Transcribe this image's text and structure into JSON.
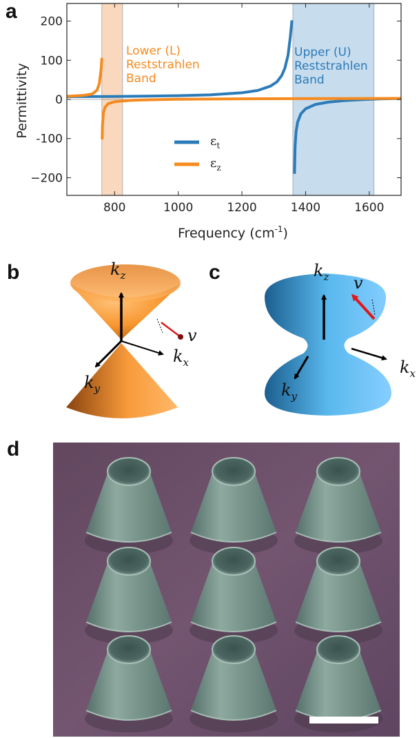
{
  "panels": {
    "a": "a",
    "b": "b",
    "c": "c",
    "d": "d"
  },
  "chart_data": {
    "type": "line",
    "xlabel": "Frequency (cm",
    "xlabel_sup": "-1",
    "xlabel_close": ")",
    "ylabel": "Permittivity",
    "xlim": [
      650,
      1700
    ],
    "ylim": [
      -245,
      245
    ],
    "x_ticks": [
      800,
      1000,
      1200,
      1400,
      1600
    ],
    "x_tick_labels": [
      "800",
      "1000",
      "1200",
      "1400",
      "1600"
    ],
    "y_ticks": [
      200,
      100,
      0,
      -100,
      -200
    ],
    "y_tick_labels": [
      "200",
      "100",
      "0",
      "-100",
      "−200"
    ],
    "bands": [
      {
        "name": "Lower (L) Reststrahlen Band",
        "lines": [
          "Lower (L)",
          "Reststrahlen",
          "Band"
        ],
        "x_range": [
          760,
          825
        ],
        "color": "#f9d8bd"
      },
      {
        "name": "Upper (U) Reststrahlen Band",
        "lines": [
          "Upper (U)",
          "Reststrahlen",
          "Band"
        ],
        "x_range": [
          1360,
          1615
        ],
        "color": "#c7dced"
      }
    ],
    "series": [
      {
        "name": "εt",
        "symbol": "ε",
        "sub": "t",
        "color": "#2b7bb9",
        "segments": [
          {
            "x": [
              650,
              800,
              900,
              1000,
              1100,
              1200,
              1250,
              1290,
              1310,
              1325,
              1335,
              1345,
              1352,
              1357
            ],
            "y": [
              7,
              7.6,
              8.4,
              9.6,
              11.6,
              17,
              23,
              34,
              45,
              61,
              80,
              113,
              160,
              202
            ]
          },
          {
            "x": [
              1365,
              1367,
              1370,
              1375,
              1385,
              1400,
              1430,
              1470,
              1520,
              1580,
              1640,
              1700
            ],
            "y": [
              -190,
              -120,
              -82,
              -58,
              -37,
              -24,
              -13,
              -7,
              -3,
              -0.5,
              1.5,
              2.5
            ]
          }
        ]
      },
      {
        "name": "εz",
        "symbol": "ε",
        "sub": "z",
        "color": "#f68a1e",
        "segments": [
          {
            "x": [
              650,
              700,
              730,
              745,
              752,
              758,
              760
            ],
            "y": [
              8,
              10,
              14,
              24,
              40,
              80,
              106
            ]
          },
          {
            "x": [
              761,
              762,
              765,
              770,
              780,
              800,
              850,
              900,
              1000,
              1200,
              1500,
              1700
            ],
            "y": [
              -102,
              -66,
              -34,
              -20,
              -11,
              -6,
              -2.5,
              -1,
              0.5,
              1.5,
              2.2,
              2.6
            ]
          }
        ]
      }
    ],
    "legend_position": "lower-center"
  },
  "iso_b": {
    "kz": "k",
    "kz_sub": "z",
    "kx": "k",
    "kx_sub": "x",
    "ky": "k",
    "ky_sub": "y",
    "v": "v",
    "color": "#f7962e"
  },
  "iso_c": {
    "kz": "k",
    "kz_sub": "z",
    "kx": "k",
    "kx_sub": "x",
    "ky": "k",
    "ky_sub": "y",
    "v": "v",
    "color": "#55b4ec"
  },
  "sem": {
    "grid": [
      3,
      3
    ],
    "background": "#6b5068",
    "cone_color": "#6f8c82"
  }
}
